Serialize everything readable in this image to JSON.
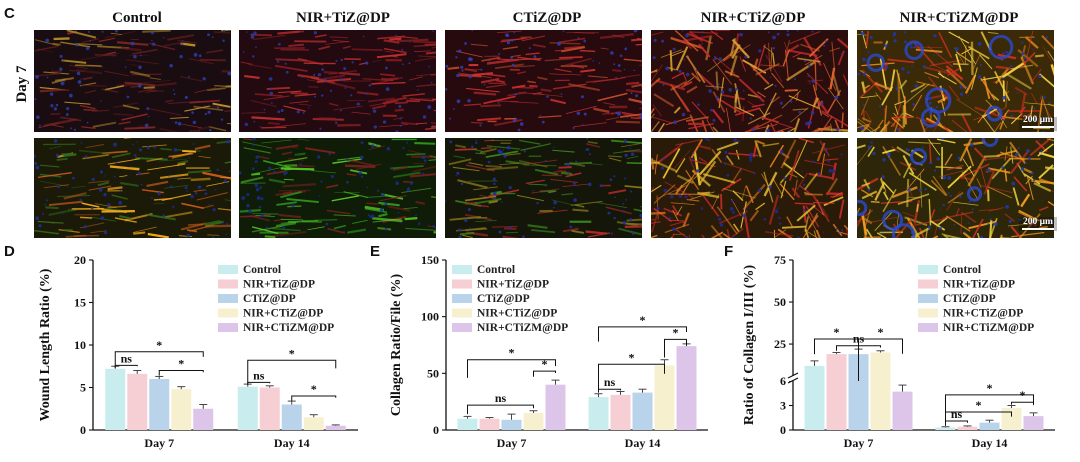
{
  "panel_c": {
    "letter": "C",
    "row_label": "Day 7",
    "columns": [
      "Control",
      "NIR+TiZ@DP",
      "CTiZ@DP",
      "NIR+CTiZ@DP",
      "NIR+CTiZM@DP"
    ],
    "scale_bar_labels": [
      "200 μm",
      "200 μm"
    ]
  },
  "groups": [
    "Control",
    "NIR+TiZ@DP",
    "CTiZ@DP",
    "NIR+CTiZ@DP",
    "NIR+CTiZM@DP"
  ],
  "colors": {
    "Control": "#c9ecef",
    "NIR+TiZ@DP": "#f6cfd4",
    "CTiZ@DP": "#b8d3ea",
    "NIR+CTiZ@DP": "#f7f0cf",
    "NIR+CTiZM@DP": "#dcc5e8",
    "sig_line": "#111111",
    "error_bar": "#444444"
  },
  "chart_data": [
    {
      "panel": "D",
      "type": "bar",
      "categories": [
        "Day 7",
        "Day 14"
      ],
      "ylabel": "Wound Length Ratio (%)",
      "xlabel": "",
      "ylim": [
        0,
        20
      ],
      "yticks": [
        0,
        5,
        10,
        15,
        20
      ],
      "legend_position": "top-right",
      "series": [
        {
          "name": "Control",
          "values": [
            7.2,
            5.1
          ],
          "errors": [
            0.3,
            0.3
          ]
        },
        {
          "name": "NIR+TiZ@DP",
          "values": [
            6.6,
            5.0
          ],
          "errors": [
            0.4,
            0.2
          ]
        },
        {
          "name": "CTiZ@DP",
          "values": [
            6.0,
            3.0
          ],
          "errors": [
            0.3,
            0.4
          ]
        },
        {
          "name": "NIR+CTiZ@DP",
          "values": [
            4.8,
            1.5
          ],
          "errors": [
            0.3,
            0.3
          ]
        },
        {
          "name": "NIR+CTiZM@DP",
          "values": [
            2.5,
            0.5
          ],
          "errors": [
            0.5,
            0.1
          ]
        }
      ],
      "significance": [
        {
          "group": 0,
          "from": 0,
          "to": 1,
          "label": "ns",
          "y": 7.6,
          "drop_y": 7.3
        },
        {
          "group": 0,
          "from": 0,
          "to": 4,
          "label": "*",
          "y": 9.2,
          "drop_y": 7.5
        },
        {
          "group": 0,
          "from": 2,
          "to": 4,
          "label": "*",
          "y": 7.0,
          "drop_y": 6.4
        },
        {
          "group": 1,
          "from": 0,
          "to": 1,
          "label": "ns",
          "y": 5.6,
          "drop_y": 5.3
        },
        {
          "group": 1,
          "from": 0,
          "to": 4,
          "label": "*",
          "y": 8.2,
          "drop_y": 5.5
        },
        {
          "group": 1,
          "from": 2,
          "to": 4,
          "label": "*",
          "y": 4.0,
          "drop_y": 3.4
        }
      ]
    },
    {
      "panel": "E",
      "type": "bar",
      "categories": [
        "Day 7",
        "Day 14"
      ],
      "ylabel": "Collagen Ratio/File (%)",
      "xlabel": "",
      "ylim": [
        0,
        150
      ],
      "yticks": [
        0,
        50,
        100,
        150
      ],
      "legend_position": "top-right",
      "series": [
        {
          "name": "Control",
          "values": [
            10,
            29
          ],
          "errors": [
            2,
            3
          ]
        },
        {
          "name": "NIR+TiZ@DP",
          "values": [
            10,
            31
          ],
          "errors": [
            1,
            3
          ]
        },
        {
          "name": "CTiZ@DP",
          "values": [
            9,
            33
          ],
          "errors": [
            5,
            3
          ]
        },
        {
          "name": "NIR+CTiZ@DP",
          "values": [
            15,
            57
          ],
          "errors": [
            2,
            5
          ]
        },
        {
          "name": "NIR+CTiZM@DP",
          "values": [
            40,
            74
          ],
          "errors": [
            4,
            2
          ]
        }
      ],
      "significance": [
        {
          "group": 0,
          "from": 0,
          "to": 3,
          "label": "ns",
          "y": 22,
          "drop_y": 14
        },
        {
          "group": 0,
          "from": 0,
          "to": 4,
          "label": "*",
          "y": 62,
          "drop_y": 46
        },
        {
          "group": 0,
          "from": 3,
          "to": 4,
          "label": "*",
          "y": 52,
          "drop_y": 47
        },
        {
          "group": 1,
          "from": 0,
          "to": 1,
          "label": "ns",
          "y": 36,
          "drop_y": 33
        },
        {
          "group": 1,
          "from": 0,
          "to": 3,
          "label": "*",
          "y": 58,
          "drop_y": 34
        },
        {
          "group": 1,
          "from": 0,
          "to": 4,
          "label": "*",
          "y": 91,
          "drop_y": 78
        },
        {
          "group": 1,
          "from": 3,
          "to": 4,
          "label": "*",
          "y": 80,
          "drop_y": 64
        }
      ]
    },
    {
      "panel": "F",
      "type": "bar",
      "categories": [
        "Day 7",
        "Day 14"
      ],
      "ylabel": "Ratio of Collagen I/III (%)",
      "xlabel": "",
      "y_axis_break": true,
      "ylim_lower": [
        0,
        6
      ],
      "ylim_upper": [
        6,
        75
      ],
      "yticks_lower": [
        0,
        3,
        6
      ],
      "yticks_upper": [
        25,
        50,
        75
      ],
      "legend_position": "top-right",
      "series": [
        {
          "name": "Control",
          "values": [
            12,
            0.3
          ],
          "errors": [
            3,
            0.1
          ]
        },
        {
          "name": "NIR+TiZ@DP",
          "values": [
            19,
            0.4
          ],
          "errors": [
            1,
            0.1
          ]
        },
        {
          "name": "CTiZ@DP",
          "values": [
            19,
            0.9
          ],
          "errors": [
            3,
            0.3
          ]
        },
        {
          "name": "NIR+CTiZ@DP",
          "values": [
            20,
            2.7
          ],
          "errors": [
            1,
            0.3
          ]
        },
        {
          "name": "NIR+CTiZM@DP",
          "values": [
            4.7,
            1.7
          ],
          "errors": [
            0.8,
            0.4
          ]
        }
      ],
      "significance": [
        {
          "group": 0,
          "from": 0,
          "to": 2,
          "label": "*",
          "y": 28,
          "drop_y": 19
        },
        {
          "group": 0,
          "from": 1,
          "to": 3,
          "label": "ns",
          "y": 24,
          "drop_y": 21
        },
        {
          "group": 0,
          "from": 2,
          "to": 4,
          "label": "*",
          "y": 28,
          "drop_y": 6.0
        },
        {
          "group": 1,
          "from": 0,
          "to": 1,
          "label": "ns",
          "y": 1.1,
          "drop_y": 0.5
        },
        {
          "group": 1,
          "from": 0,
          "to": 3,
          "label": "*",
          "y": 2.2,
          "drop_y": 0.6
        },
        {
          "group": 1,
          "from": 0,
          "to": 4,
          "label": "*",
          "y": 4.3,
          "drop_y": 0.7
        },
        {
          "group": 1,
          "from": 3,
          "to": 4,
          "label": "*",
          "y": 3.4,
          "drop_y": 3.1
        }
      ]
    }
  ]
}
